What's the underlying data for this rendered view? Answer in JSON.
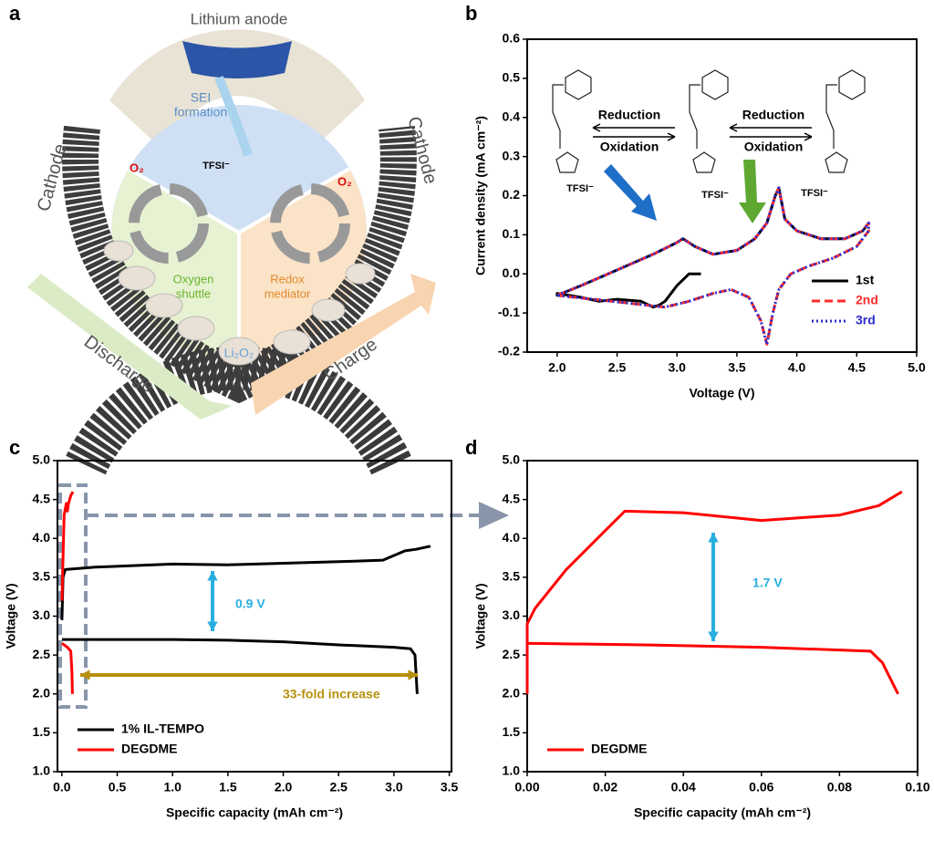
{
  "panel_labels": [
    "a",
    "b",
    "c",
    "d"
  ],
  "diagram": {
    "texts": [
      "Lithium anode",
      "SEI",
      "formation",
      "Cathode",
      "Cathode",
      "TFSI⁻",
      "O₂",
      "O₂",
      "Oxygen",
      "shuttle",
      "Redox",
      "mediator",
      "Discharge",
      "Charge",
      "Li₂O₂"
    ]
  },
  "chart_data": [
    {
      "type": "line",
      "xlabel": "Voltage (V)",
      "ylabel": "Current density (mA cm⁻²)",
      "xlim": [
        1.75,
        5.0
      ],
      "ylim": [
        -0.2,
        0.6
      ],
      "xticks": [
        {
          "value": 2,
          "label": "2.0"
        },
        2.5,
        {
          "value": 3,
          "label": "3.0"
        },
        3.5,
        {
          "value": 4,
          "label": "4.0"
        },
        4.5,
        {
          "value": 5,
          "label": "5.0"
        }
      ],
      "yticks": [
        -0.2,
        -0.1,
        {
          "value": 0,
          "label": "0.0"
        },
        0.1,
        0.2,
        0.3,
        0.4,
        0.5,
        0.6
      ],
      "legend": "lower right",
      "annotations": [
        "Reduction",
        "Oxidation",
        "Reduction",
        "Oxidation",
        "TFSI⁻",
        "TFSI⁻",
        "TFSI⁻"
      ],
      "series": [
        {
          "name": "1st",
          "color": "#000000",
          "linestyle": "solid",
          "x": [
            3.2,
            3.1,
            3.0,
            2.9,
            2.85,
            2.8,
            2.7,
            2.5,
            2.35,
            2.2,
            2.0,
            2.0,
            2.2,
            2.5,
            2.8,
            3.0,
            3.05,
            3.15,
            3.3,
            3.5,
            3.65,
            3.75,
            3.82,
            3.85,
            3.9,
            4.0,
            4.2,
            4.4,
            4.55,
            4.6
          ],
          "values": [
            0.0,
            0.0,
            -0.03,
            -0.07,
            -0.08,
            -0.085,
            -0.07,
            -0.065,
            -0.07,
            -0.06,
            -0.05,
            -0.055,
            -0.03,
            0.01,
            0.05,
            0.08,
            0.09,
            0.07,
            0.05,
            0.06,
            0.09,
            0.13,
            0.2,
            0.22,
            0.14,
            0.11,
            0.09,
            0.09,
            0.11,
            0.13
          ]
        },
        {
          "name": "2nd",
          "color": "#ff2a2a",
          "linestyle": "dashed",
          "x": [
            2.0,
            2.2,
            2.5,
            2.8,
            3.0,
            3.05,
            3.15,
            3.3,
            3.5,
            3.65,
            3.75,
            3.82,
            3.85,
            3.9,
            4.0,
            4.2,
            4.4,
            4.55,
            4.6,
            4.6,
            4.5,
            4.3,
            4.1,
            3.95,
            3.85,
            3.8,
            3.75,
            3.7,
            3.6,
            3.45,
            3.3,
            3.1,
            2.9,
            2.6,
            2.3,
            2.0
          ],
          "values": [
            -0.055,
            -0.03,
            0.01,
            0.05,
            0.08,
            0.09,
            0.07,
            0.05,
            0.06,
            0.09,
            0.13,
            0.2,
            0.22,
            0.14,
            0.11,
            0.09,
            0.09,
            0.11,
            0.13,
            0.11,
            0.07,
            0.04,
            0.02,
            0.0,
            -0.04,
            -0.1,
            -0.18,
            -0.12,
            -0.06,
            -0.04,
            -0.05,
            -0.07,
            -0.085,
            -0.075,
            -0.065,
            -0.055
          ]
        },
        {
          "name": "3rd",
          "color": "#2a2acc",
          "linestyle": "dotted",
          "x": [
            2.0,
            2.2,
            2.5,
            2.8,
            3.0,
            3.05,
            3.15,
            3.3,
            3.5,
            3.65,
            3.75,
            3.82,
            3.85,
            3.9,
            4.0,
            4.2,
            4.4,
            4.55,
            4.6,
            4.6,
            4.5,
            4.3,
            4.1,
            3.95,
            3.85,
            3.8,
            3.75,
            3.7,
            3.6,
            3.45,
            3.3,
            3.1,
            2.9,
            2.6,
            2.3,
            2.0
          ],
          "values": [
            -0.055,
            -0.03,
            0.01,
            0.05,
            0.08,
            0.09,
            0.07,
            0.05,
            0.06,
            0.09,
            0.13,
            0.2,
            0.22,
            0.14,
            0.11,
            0.09,
            0.09,
            0.11,
            0.13,
            0.11,
            0.07,
            0.04,
            0.02,
            0.0,
            -0.04,
            -0.1,
            -0.18,
            -0.12,
            -0.06,
            -0.04,
            -0.05,
            -0.07,
            -0.085,
            -0.075,
            -0.065,
            -0.055
          ]
        }
      ]
    },
    {
      "type": "line",
      "xlabel": "Specific capacity (mAh cm⁻²)",
      "ylabel": "Voltage (V)",
      "xlim": [
        -0.04,
        3.52
      ],
      "ylim": [
        1.0,
        5.0
      ],
      "xticks": [
        {
          "value": 0,
          "label": "0.0"
        },
        0.5,
        {
          "value": 1,
          "label": "1.0"
        },
        1.5,
        {
          "value": 2,
          "label": "2.0"
        },
        2.5,
        {
          "value": 3,
          "label": "3.0"
        },
        3.5
      ],
      "yticks": [
        {
          "value": 1,
          "label": "1.0"
        },
        1.5,
        {
          "value": 2,
          "label": "2.0"
        },
        2.5,
        {
          "value": 3,
          "label": "3.0"
        },
        3.5,
        {
          "value": 4,
          "label": "4.0"
        },
        4.5,
        {
          "value": 5,
          "label": "5.0"
        }
      ],
      "legend": "lower left",
      "annotations": [
        "0.9 V",
        "33-fold increase"
      ],
      "series": [
        {
          "name": "1% IL-TEMPO",
          "color": "#000000",
          "linestyle": "solid",
          "x": [
            0.0,
            0.01,
            0.03,
            0.3,
            1.0,
            1.5,
            2.0,
            2.5,
            2.9,
            3.0,
            3.1,
            3.2,
            3.33,
            3.33,
            0.0,
            0.05,
            0.5,
            1.0,
            1.5,
            2.0,
            2.5,
            3.0,
            3.15,
            3.19,
            3.21
          ],
          "values": [
            2.95,
            3.5,
            3.6,
            3.63,
            3.67,
            3.66,
            3.68,
            3.7,
            3.72,
            3.78,
            3.84,
            3.86,
            3.9,
            null,
            2.7,
            2.7,
            2.7,
            2.7,
            2.69,
            2.67,
            2.63,
            2.6,
            2.58,
            2.5,
            2.0
          ]
        },
        {
          "name": "DEGDME",
          "color": "#ff0000",
          "linestyle": "solid",
          "x": [
            0.0,
            0.02,
            0.04,
            0.05,
            0.06,
            0.08,
            0.1,
            0.1,
            0.0,
            0.05,
            0.08,
            0.09,
            0.095
          ],
          "values": [
            3.2,
            4.3,
            4.45,
            4.35,
            4.45,
            4.55,
            4.6,
            null,
            2.65,
            2.6,
            2.55,
            2.3,
            2.0
          ]
        }
      ]
    },
    {
      "type": "line",
      "xlabel": "Specific capacity (mAh cm⁻²)",
      "ylabel": "Voltage (V)",
      "xlim": [
        0,
        0.1
      ],
      "ylim": [
        1.0,
        5.0
      ],
      "xticks": [
        {
          "value": 0,
          "label": "0.00"
        },
        0.02,
        0.04,
        0.06,
        0.08,
        {
          "value": 0.1,
          "label": "0.10"
        }
      ],
      "yticks": [
        {
          "value": 1,
          "label": "1.0"
        },
        1.5,
        {
          "value": 2,
          "label": "2.0"
        },
        2.5,
        {
          "value": 3,
          "label": "3.0"
        },
        3.5,
        {
          "value": 4,
          "label": "4.0"
        },
        4.5,
        {
          "value": 5,
          "label": "5.0"
        }
      ],
      "legend": "lower left",
      "annotations": [
        "1.7 V"
      ],
      "series": [
        {
          "name": "DEGDME",
          "color": "#ff0000",
          "linestyle": "solid",
          "x": [
            0.0,
            0.0,
            0.002,
            0.01,
            0.02,
            0.025,
            0.04,
            0.06,
            0.08,
            0.09,
            0.096,
            0.096,
            0.0,
            0.03,
            0.06,
            0.088,
            0.091,
            0.093,
            0.095
          ],
          "values": [
            2.0,
            2.9,
            3.1,
            3.6,
            4.1,
            4.35,
            4.33,
            4.23,
            4.3,
            4.42,
            4.6,
            null,
            2.65,
            2.63,
            2.6,
            2.55,
            2.4,
            2.2,
            2.0
          ]
        }
      ]
    }
  ]
}
